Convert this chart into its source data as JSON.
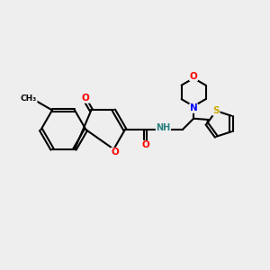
{
  "background_color": "#eeeeee",
  "bond_color": "#000000",
  "atom_colors": {
    "O": "#ff0000",
    "N": "#0000ff",
    "S": "#ccaa00",
    "H": "#2a8080",
    "C": "#000000"
  },
  "figsize": [
    3.0,
    3.0
  ],
  "dpi": 100,
  "lw": 1.5,
  "fontsize": 7.5
}
